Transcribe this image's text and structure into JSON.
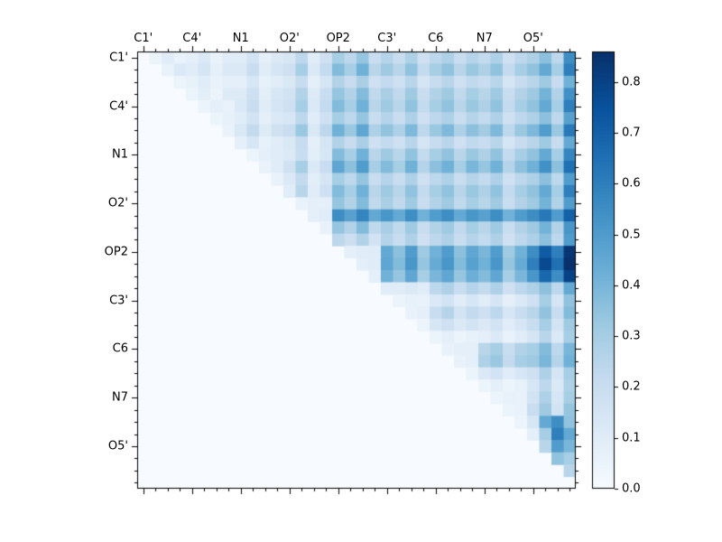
{
  "figure": {
    "background": "#ffffff"
  },
  "chart_data": {
    "type": "heatmap",
    "title": "",
    "description": "Upper-triangular pairwise matrix heatmap (Blues colormap) over nucleotide atom groups, with colorbar 0.0-0.8",
    "axis_labels": [
      "C1'",
      "C4'",
      "N1",
      "O2'",
      "OP2",
      "C3'",
      "C6",
      "N7",
      "O5'"
    ],
    "label_indices": [
      0,
      4,
      8,
      12,
      16,
      20,
      24,
      28,
      32
    ],
    "n": 36,
    "vmin": 0.0,
    "vmax": 0.86,
    "colormap_name": "Blues",
    "colormap_stops": [
      [
        0.0,
        "#f7fbff"
      ],
      [
        0.125,
        "#deebf7"
      ],
      [
        0.25,
        "#c6dbef"
      ],
      [
        0.375,
        "#9ecae1"
      ],
      [
        0.5,
        "#6baed6"
      ],
      [
        0.625,
        "#4292c6"
      ],
      [
        0.75,
        "#2171b5"
      ],
      [
        0.875,
        "#08519c"
      ],
      [
        1.0,
        "#08306b"
      ]
    ],
    "colorbar_ticks": [
      0.0,
      0.1,
      0.2,
      0.3,
      0.4,
      0.5,
      0.6,
      0.7,
      0.8
    ],
    "matrix": [
      [
        0,
        0.05,
        0.1,
        0.06,
        0.08,
        0.12,
        0.06,
        0.1,
        0.1,
        0.16,
        0.08,
        0.12,
        0.14,
        0.24,
        0.1,
        0.18,
        0.3,
        0.24,
        0.34,
        0.2,
        0.26,
        0.2,
        0.28,
        0.18,
        0.24,
        0.28,
        0.2,
        0.26,
        0.22,
        0.28,
        0.18,
        0.24,
        0.28,
        0.36,
        0.24,
        0.55
      ],
      [
        0,
        0,
        0.06,
        0.12,
        0.1,
        0.15,
        0.08,
        0.12,
        0.12,
        0.2,
        0.1,
        0.15,
        0.18,
        0.3,
        0.12,
        0.22,
        0.38,
        0.3,
        0.42,
        0.25,
        0.32,
        0.25,
        0.35,
        0.22,
        0.3,
        0.35,
        0.25,
        0.33,
        0.28,
        0.35,
        0.22,
        0.3,
        0.35,
        0.45,
        0.3,
        0.6
      ],
      [
        0,
        0,
        0,
        0.05,
        0.07,
        0.1,
        0.06,
        0.08,
        0.08,
        0.14,
        0.07,
        0.1,
        0.13,
        0.21,
        0.08,
        0.15,
        0.27,
        0.21,
        0.29,
        0.18,
        0.22,
        0.18,
        0.25,
        0.15,
        0.21,
        0.25,
        0.18,
        0.23,
        0.2,
        0.25,
        0.15,
        0.21,
        0.25,
        0.32,
        0.21,
        0.42
      ],
      [
        0,
        0,
        0,
        0,
        0.05,
        0.09,
        0.05,
        0.11,
        0.11,
        0.18,
        0.09,
        0.14,
        0.16,
        0.27,
        0.11,
        0.2,
        0.34,
        0.27,
        0.38,
        0.23,
        0.29,
        0.23,
        0.32,
        0.2,
        0.27,
        0.32,
        0.23,
        0.3,
        0.25,
        0.32,
        0.2,
        0.27,
        0.32,
        0.41,
        0.27,
        0.54
      ],
      [
        0,
        0,
        0,
        0,
        0,
        0.05,
        0.08,
        0.06,
        0.12,
        0.2,
        0.1,
        0.15,
        0.18,
        0.3,
        0.12,
        0.22,
        0.38,
        0.3,
        0.42,
        0.25,
        0.32,
        0.25,
        0.35,
        0.22,
        0.3,
        0.35,
        0.25,
        0.33,
        0.28,
        0.35,
        0.22,
        0.3,
        0.35,
        0.45,
        0.3,
        0.6
      ],
      [
        0,
        0,
        0,
        0,
        0,
        0,
        0.05,
        0.07,
        0.1,
        0.16,
        0.08,
        0.12,
        0.14,
        0.24,
        0.1,
        0.18,
        0.3,
        0.24,
        0.34,
        0.2,
        0.26,
        0.2,
        0.28,
        0.18,
        0.24,
        0.28,
        0.2,
        0.26,
        0.22,
        0.28,
        0.18,
        0.24,
        0.28,
        0.36,
        0.24,
        0.48
      ],
      [
        0,
        0,
        0,
        0,
        0,
        0,
        0,
        0.06,
        0.13,
        0.22,
        0.11,
        0.17,
        0.2,
        0.33,
        0.13,
        0.24,
        0.42,
        0.33,
        0.46,
        0.28,
        0.35,
        0.28,
        0.39,
        0.24,
        0.33,
        0.39,
        0.28,
        0.36,
        0.31,
        0.39,
        0.24,
        0.33,
        0.39,
        0.5,
        0.33,
        0.62
      ],
      [
        0,
        0,
        0,
        0,
        0,
        0,
        0,
        0,
        0.08,
        0.14,
        0.07,
        0.1,
        0.13,
        0.21,
        0.08,
        0.15,
        0.27,
        0.21,
        0.29,
        0.18,
        0.22,
        0.18,
        0.25,
        0.15,
        0.21,
        0.25,
        0.18,
        0.23,
        0.2,
        0.25,
        0.15,
        0.21,
        0.25,
        0.32,
        0.21,
        0.45
      ],
      [
        0,
        0,
        0,
        0,
        0,
        0,
        0,
        0,
        0,
        0.05,
        0.08,
        0.1,
        0.12,
        0.2,
        0.09,
        0.14,
        0.38,
        0.3,
        0.42,
        0.25,
        0.32,
        0.25,
        0.35,
        0.22,
        0.3,
        0.35,
        0.25,
        0.33,
        0.28,
        0.35,
        0.22,
        0.3,
        0.35,
        0.45,
        0.3,
        0.58
      ],
      [
        0,
        0,
        0,
        0,
        0,
        0,
        0,
        0,
        0,
        0,
        0.06,
        0.1,
        0.17,
        0.3,
        0.12,
        0.2,
        0.46,
        0.36,
        0.5,
        0.3,
        0.38,
        0.3,
        0.42,
        0.26,
        0.36,
        0.42,
        0.3,
        0.4,
        0.34,
        0.42,
        0.26,
        0.36,
        0.42,
        0.54,
        0.36,
        0.65
      ],
      [
        0,
        0,
        0,
        0,
        0,
        0,
        0,
        0,
        0,
        0,
        0,
        0.06,
        0.12,
        0.22,
        0.09,
        0.15,
        0.3,
        0.24,
        0.34,
        0.2,
        0.26,
        0.2,
        0.28,
        0.18,
        0.24,
        0.28,
        0.2,
        0.26,
        0.22,
        0.28,
        0.18,
        0.24,
        0.28,
        0.36,
        0.24,
        0.5
      ],
      [
        0,
        0,
        0,
        0,
        0,
        0,
        0,
        0,
        0,
        0,
        0,
        0,
        0.1,
        0.25,
        0.1,
        0.18,
        0.38,
        0.3,
        0.42,
        0.25,
        0.32,
        0.25,
        0.35,
        0.22,
        0.3,
        0.35,
        0.25,
        0.33,
        0.28,
        0.35,
        0.22,
        0.3,
        0.35,
        0.45,
        0.3,
        0.6
      ],
      [
        0,
        0,
        0,
        0,
        0,
        0,
        0,
        0,
        0,
        0,
        0,
        0,
        0,
        0.06,
        0.08,
        0.08,
        0.34,
        0.27,
        0.38,
        0.23,
        0.29,
        0.23,
        0.32,
        0.2,
        0.27,
        0.32,
        0.23,
        0.3,
        0.25,
        0.32,
        0.2,
        0.27,
        0.32,
        0.41,
        0.27,
        0.5
      ],
      [
        0,
        0,
        0,
        0,
        0,
        0,
        0,
        0,
        0,
        0,
        0,
        0,
        0,
        0,
        0.08,
        0.1,
        0.55,
        0.48,
        0.58,
        0.45,
        0.52,
        0.45,
        0.55,
        0.42,
        0.5,
        0.55,
        0.45,
        0.52,
        0.48,
        0.55,
        0.42,
        0.5,
        0.55,
        0.62,
        0.5,
        0.7
      ],
      [
        0,
        0,
        0,
        0,
        0,
        0,
        0,
        0,
        0,
        0,
        0,
        0,
        0,
        0,
        0,
        0.06,
        0.34,
        0.27,
        0.38,
        0.23,
        0.29,
        0.23,
        0.32,
        0.2,
        0.27,
        0.32,
        0.23,
        0.3,
        0.25,
        0.32,
        0.2,
        0.27,
        0.32,
        0.41,
        0.27,
        0.52
      ],
      [
        0,
        0,
        0,
        0,
        0,
        0,
        0,
        0,
        0,
        0,
        0,
        0,
        0,
        0,
        0,
        0,
        0.24,
        0.19,
        0.27,
        0.16,
        0.26,
        0.2,
        0.28,
        0.18,
        0.24,
        0.28,
        0.2,
        0.26,
        0.22,
        0.28,
        0.18,
        0.24,
        0.28,
        0.36,
        0.24,
        0.5
      ],
      [
        0,
        0,
        0,
        0,
        0,
        0,
        0,
        0,
        0,
        0,
        0,
        0,
        0,
        0,
        0,
        0,
        0,
        0.08,
        0.1,
        0.1,
        0.45,
        0.36,
        0.5,
        0.32,
        0.42,
        0.5,
        0.36,
        0.46,
        0.4,
        0.5,
        0.32,
        0.42,
        0.55,
        0.72,
        0.6,
        0.84
      ],
      [
        0,
        0,
        0,
        0,
        0,
        0,
        0,
        0,
        0,
        0,
        0,
        0,
        0,
        0,
        0,
        0,
        0,
        0,
        0.08,
        0.1,
        0.46,
        0.38,
        0.52,
        0.34,
        0.44,
        0.52,
        0.38,
        0.48,
        0.42,
        0.52,
        0.34,
        0.44,
        0.6,
        0.78,
        0.65,
        0.86
      ],
      [
        0,
        0,
        0,
        0,
        0,
        0,
        0,
        0,
        0,
        0,
        0,
        0,
        0,
        0,
        0,
        0,
        0,
        0,
        0,
        0.08,
        0.42,
        0.34,
        0.46,
        0.3,
        0.4,
        0.46,
        0.34,
        0.43,
        0.38,
        0.46,
        0.3,
        0.4,
        0.52,
        0.68,
        0.55,
        0.8
      ],
      [
        0,
        0,
        0,
        0,
        0,
        0,
        0,
        0,
        0,
        0,
        0,
        0,
        0,
        0,
        0,
        0,
        0,
        0,
        0,
        0,
        0.1,
        0.1,
        0.12,
        0.1,
        0.24,
        0.28,
        0.2,
        0.26,
        0.22,
        0.28,
        0.18,
        0.24,
        0.28,
        0.36,
        0.24,
        0.45
      ],
      [
        0,
        0,
        0,
        0,
        0,
        0,
        0,
        0,
        0,
        0,
        0,
        0,
        0,
        0,
        0,
        0,
        0,
        0,
        0,
        0,
        0,
        0.05,
        0.07,
        0.06,
        0.12,
        0.16,
        0.1,
        0.14,
        0.1,
        0.15,
        0.08,
        0.12,
        0.18,
        0.3,
        0.15,
        0.35
      ],
      [
        0,
        0,
        0,
        0,
        0,
        0,
        0,
        0,
        0,
        0,
        0,
        0,
        0,
        0,
        0,
        0,
        0,
        0,
        0,
        0,
        0,
        0,
        0.06,
        0.08,
        0.2,
        0.26,
        0.16,
        0.22,
        0.18,
        0.24,
        0.14,
        0.2,
        0.25,
        0.35,
        0.2,
        0.38
      ],
      [
        0,
        0,
        0,
        0,
        0,
        0,
        0,
        0,
        0,
        0,
        0,
        0,
        0,
        0,
        0,
        0,
        0,
        0,
        0,
        0,
        0,
        0,
        0,
        0.05,
        0.14,
        0.18,
        0.12,
        0.16,
        0.12,
        0.16,
        0.1,
        0.14,
        0.2,
        0.3,
        0.16,
        0.32
      ],
      [
        0,
        0,
        0,
        0,
        0,
        0,
        0,
        0,
        0,
        0,
        0,
        0,
        0,
        0,
        0,
        0,
        0,
        0,
        0,
        0,
        0,
        0,
        0,
        0,
        0.05,
        0.08,
        0.05,
        0.07,
        0.08,
        0.12,
        0.06,
        0.1,
        0.15,
        0.25,
        0.12,
        0.3
      ],
      [
        0,
        0,
        0,
        0,
        0,
        0,
        0,
        0,
        0,
        0,
        0,
        0,
        0,
        0,
        0,
        0,
        0,
        0,
        0,
        0,
        0,
        0,
        0,
        0,
        0,
        0.06,
        0.08,
        0.08,
        0.25,
        0.3,
        0.2,
        0.27,
        0.3,
        0.38,
        0.24,
        0.4
      ],
      [
        0,
        0,
        0,
        0,
        0,
        0,
        0,
        0,
        0,
        0,
        0,
        0,
        0,
        0,
        0,
        0,
        0,
        0,
        0,
        0,
        0,
        0,
        0,
        0,
        0,
        0,
        0.06,
        0.08,
        0.28,
        0.33,
        0.22,
        0.3,
        0.32,
        0.4,
        0.26,
        0.42
      ],
      [
        0,
        0,
        0,
        0,
        0,
        0,
        0,
        0,
        0,
        0,
        0,
        0,
        0,
        0,
        0,
        0,
        0,
        0,
        0,
        0,
        0,
        0,
        0,
        0,
        0,
        0,
        0,
        0.05,
        0.12,
        0.16,
        0.1,
        0.14,
        0.18,
        0.28,
        0.15,
        0.3
      ],
      [
        0,
        0,
        0,
        0,
        0,
        0,
        0,
        0,
        0,
        0,
        0,
        0,
        0,
        0,
        0,
        0,
        0,
        0,
        0,
        0,
        0,
        0,
        0,
        0,
        0,
        0,
        0,
        0,
        0.05,
        0.08,
        0.05,
        0.07,
        0.14,
        0.24,
        0.12,
        0.28
      ],
      [
        0,
        0,
        0,
        0,
        0,
        0,
        0,
        0,
        0,
        0,
        0,
        0,
        0,
        0,
        0,
        0,
        0,
        0,
        0,
        0,
        0,
        0,
        0,
        0,
        0,
        0,
        0,
        0,
        0,
        0.05,
        0.07,
        0.06,
        0.16,
        0.28,
        0.14,
        0.3
      ],
      [
        0,
        0,
        0,
        0,
        0,
        0,
        0,
        0,
        0,
        0,
        0,
        0,
        0,
        0,
        0,
        0,
        0,
        0,
        0,
        0,
        0,
        0,
        0,
        0,
        0,
        0,
        0,
        0,
        0,
        0,
        0.05,
        0.06,
        0.2,
        0.32,
        0.16,
        0.34
      ],
      [
        0,
        0,
        0,
        0,
        0,
        0,
        0,
        0,
        0,
        0,
        0,
        0,
        0,
        0,
        0,
        0,
        0,
        0,
        0,
        0,
        0,
        0,
        0,
        0,
        0,
        0,
        0,
        0,
        0,
        0,
        0,
        0.05,
        0.14,
        0.45,
        0.55,
        0.35
      ],
      [
        0,
        0,
        0,
        0,
        0,
        0,
        0,
        0,
        0,
        0,
        0,
        0,
        0,
        0,
        0,
        0,
        0,
        0,
        0,
        0,
        0,
        0,
        0,
        0,
        0,
        0,
        0,
        0,
        0,
        0,
        0,
        0,
        0.08,
        0.3,
        0.6,
        0.45
      ],
      [
        0,
        0,
        0,
        0,
        0,
        0,
        0,
        0,
        0,
        0,
        0,
        0,
        0,
        0,
        0,
        0,
        0,
        0,
        0,
        0,
        0,
        0,
        0,
        0,
        0,
        0,
        0,
        0,
        0,
        0,
        0,
        0,
        0,
        0.25,
        0.5,
        0.4
      ],
      [
        0,
        0,
        0,
        0,
        0,
        0,
        0,
        0,
        0,
        0,
        0,
        0,
        0,
        0,
        0,
        0,
        0,
        0,
        0,
        0,
        0,
        0,
        0,
        0,
        0,
        0,
        0,
        0,
        0,
        0,
        0,
        0,
        0,
        0,
        0.35,
        0.3
      ],
      [
        0,
        0,
        0,
        0,
        0,
        0,
        0,
        0,
        0,
        0,
        0,
        0,
        0,
        0,
        0,
        0,
        0,
        0,
        0,
        0,
        0,
        0,
        0,
        0,
        0,
        0,
        0,
        0,
        0,
        0,
        0,
        0,
        0,
        0,
        0,
        0.25
      ],
      [
        0,
        0,
        0,
        0,
        0,
        0,
        0,
        0,
        0,
        0,
        0,
        0,
        0,
        0,
        0,
        0,
        0,
        0,
        0,
        0,
        0,
        0,
        0,
        0,
        0,
        0,
        0,
        0,
        0,
        0,
        0,
        0,
        0,
        0,
        0,
        0
      ]
    ]
  }
}
